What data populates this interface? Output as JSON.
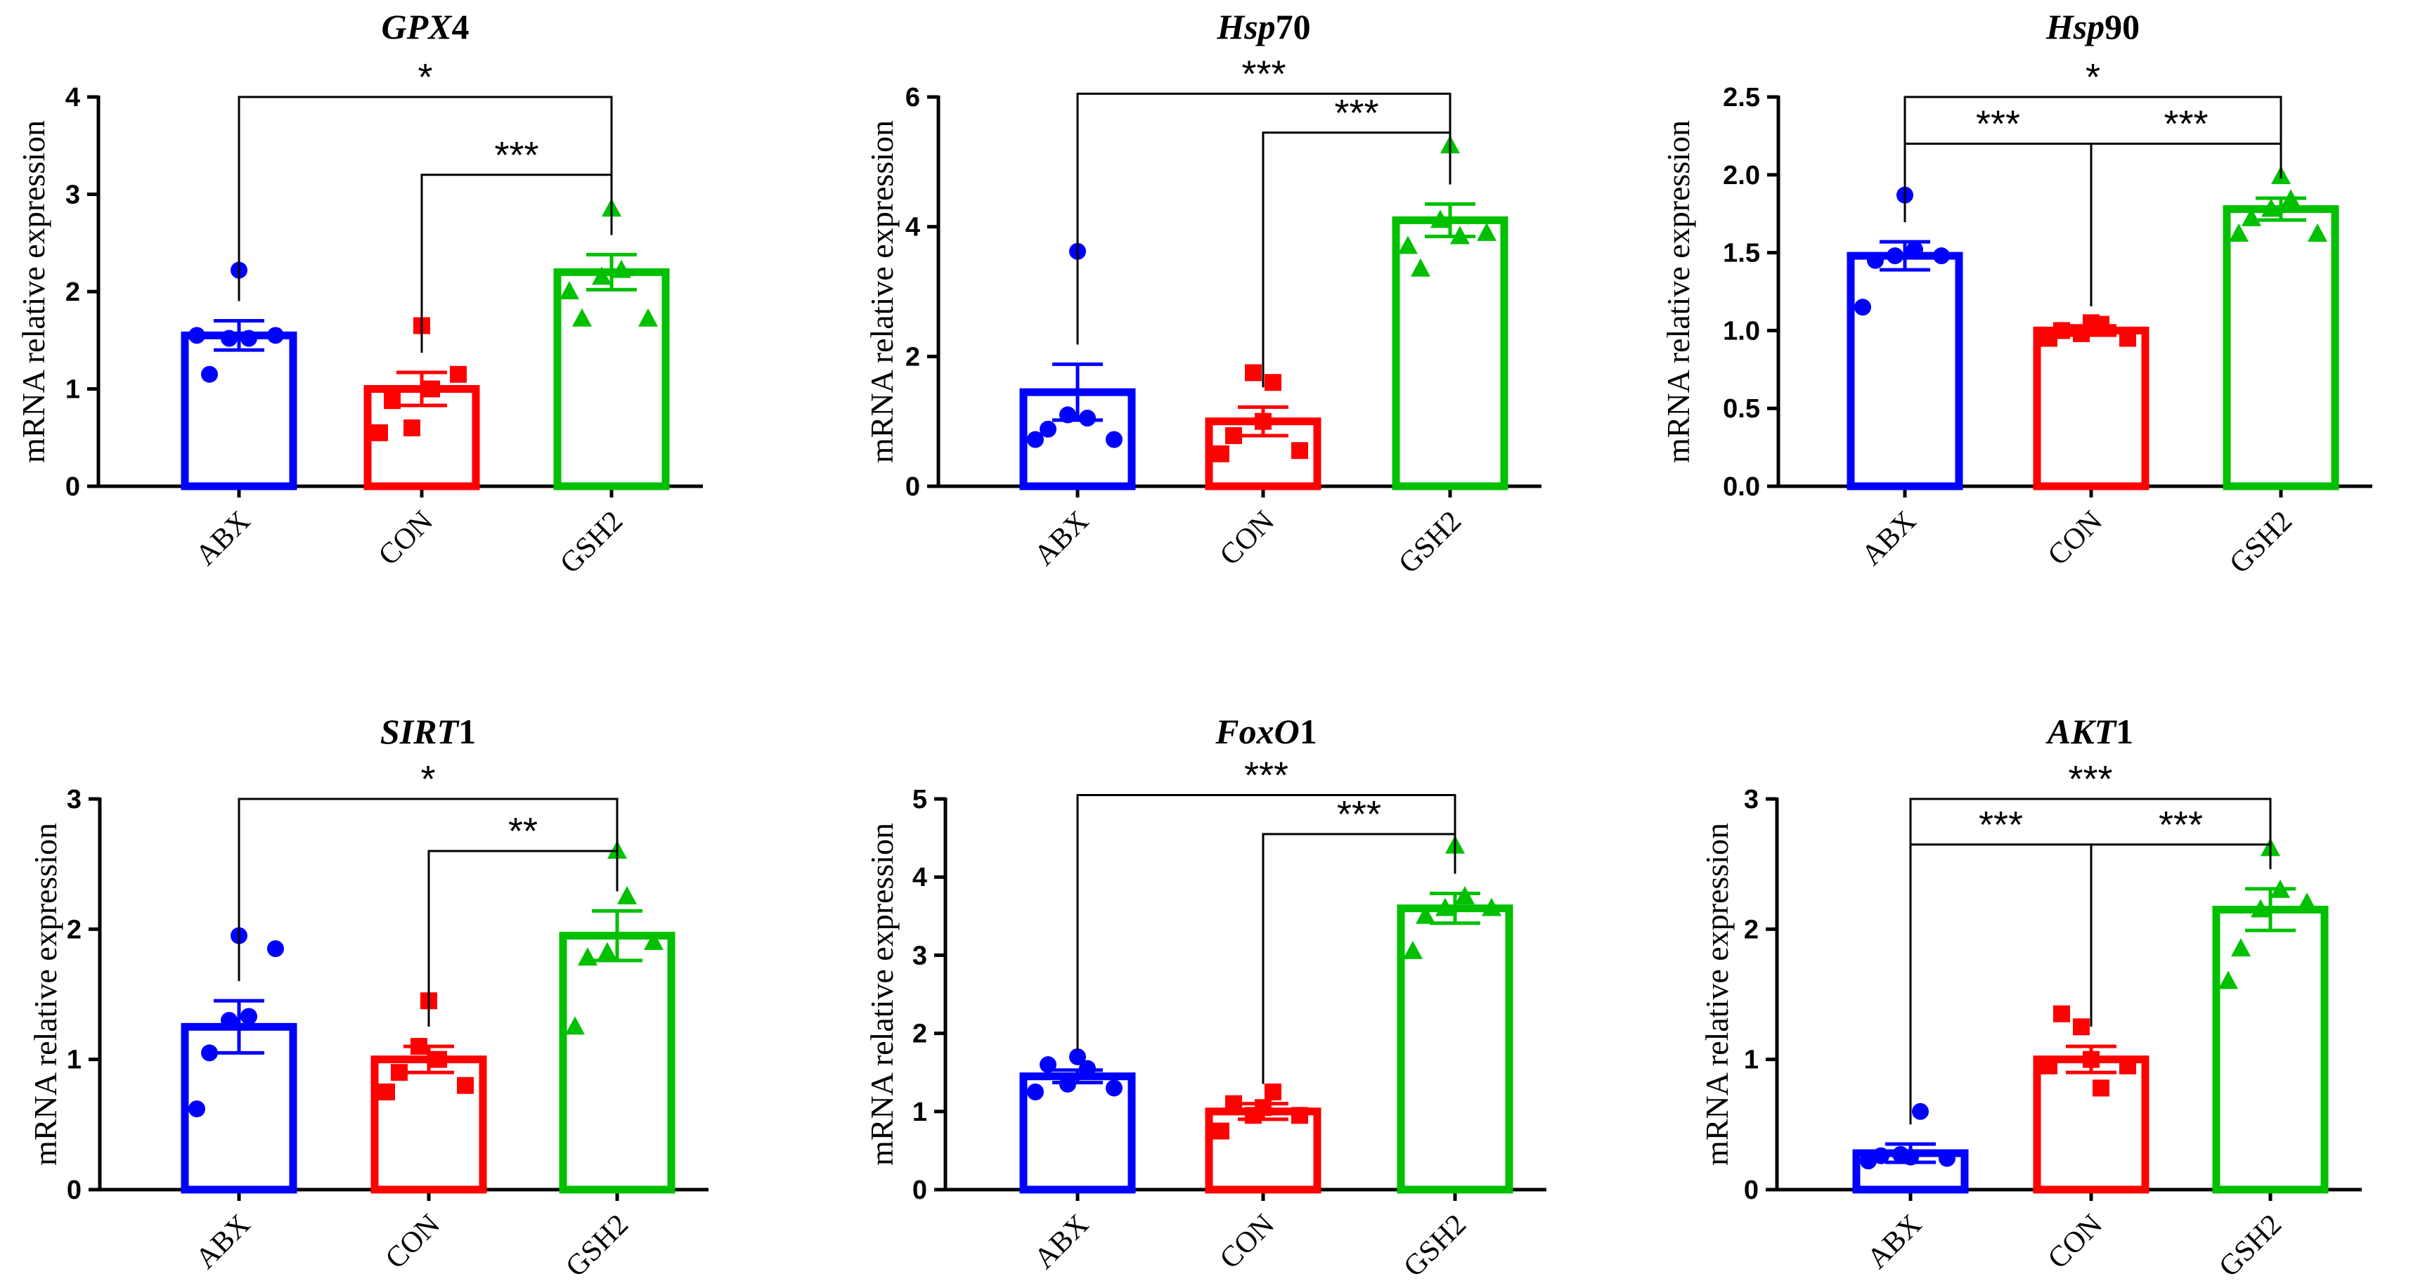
{
  "colors": {
    "ABX": "#0000ff",
    "CON": "#ff0000",
    "GSH2": "#00c000"
  },
  "chart_data": [
    {
      "type": "bar",
      "title_italic": "GPX",
      "title_plain": "4",
      "ylabel": "mRNA relative expression",
      "categories": [
        "ABX",
        "CON",
        "GSH2"
      ],
      "values": [
        1.55,
        1.0,
        2.2
      ],
      "sem": [
        0.15,
        0.17,
        0.18
      ],
      "points": [
        [
          1.55,
          1.15,
          1.52,
          1.52,
          2.22,
          1.55
        ],
        [
          0.55,
          0.88,
          0.6,
          1.0,
          1.65,
          1.15
        ],
        [
          2.0,
          1.72,
          2.15,
          2.22,
          2.85,
          1.72
        ]
      ],
      "marker": [
        "circle",
        "square",
        "triangle"
      ],
      "ylim": [
        0,
        4
      ],
      "yticks": [
        "0",
        "1",
        "2",
        "3",
        "4"
      ],
      "annotations": [
        {
          "from": 0,
          "to": 2,
          "label": "*",
          "level": 4
        },
        {
          "from": 1,
          "to": 2,
          "label": "***",
          "level": 3.2
        }
      ]
    },
    {
      "type": "bar",
      "title_italic": "Hsp",
      "title_plain": "70",
      "ylabel": "mRNA relative expression",
      "categories": [
        "ABX",
        "CON",
        "GSH2"
      ],
      "values": [
        1.45,
        1.0,
        4.1
      ],
      "sem": [
        0.43,
        0.22,
        0.25
      ],
      "points": [
        [
          0.72,
          0.88,
          1.1,
          1.05,
          3.62,
          0.72
        ],
        [
          0.5,
          0.78,
          1.75,
          1.6,
          1.0,
          0.55
        ],
        [
          3.7,
          3.35,
          4.1,
          3.85,
          5.25,
          3.9
        ]
      ],
      "marker": [
        "circle",
        "square",
        "triangle"
      ],
      "ylim": [
        0,
        6
      ],
      "yticks": [
        "0",
        "2",
        "4",
        "6"
      ],
      "annotations": [
        {
          "from": 0,
          "to": 2,
          "label": "***",
          "level": 6.05
        },
        {
          "from": 1,
          "to": 2,
          "label": "***",
          "level": 5.45
        }
      ]
    },
    {
      "type": "bar",
      "title_italic": "Hsp",
      "title_plain": "90",
      "ylabel": "mRNA relative expression",
      "categories": [
        "ABX",
        "CON",
        "GSH2"
      ],
      "values": [
        1.48,
        1.0,
        1.78
      ],
      "sem": [
        0.09,
        0.03,
        0.07
      ],
      "points": [
        [
          1.15,
          1.45,
          1.48,
          1.52,
          1.87,
          1.48
        ],
        [
          0.95,
          1.0,
          0.98,
          1.04,
          1.05,
          0.95
        ],
        [
          1.62,
          1.72,
          1.78,
          1.84,
          1.99,
          1.62
        ]
      ],
      "marker": [
        "circle",
        "square",
        "triangle"
      ],
      "ylim": [
        0,
        2.5
      ],
      "yticks": [
        "0.0",
        "0.5",
        "1.0",
        "1.5",
        "2.0",
        "2.5"
      ],
      "annotations": [
        {
          "from": 0,
          "to": 2,
          "label": "*",
          "level": 2.5
        },
        {
          "from": 0,
          "to": 1,
          "label": "***",
          "level": 2.2
        },
        {
          "from": 1,
          "to": 2,
          "label": "***",
          "level": 2.2
        }
      ]
    },
    {
      "type": "bar",
      "title_italic": "SIRT",
      "title_plain": "1",
      "ylabel": "mRNA relative expression",
      "categories": [
        "ABX",
        "CON",
        "GSH2"
      ],
      "values": [
        1.25,
        1.0,
        1.95
      ],
      "sem": [
        0.2,
        0.1,
        0.19
      ],
      "points": [
        [
          0.62,
          1.05,
          1.3,
          1.33,
          1.95,
          1.85
        ],
        [
          0.75,
          0.9,
          1.1,
          1.0,
          1.45,
          0.8
        ],
        [
          1.25,
          1.78,
          1.82,
          2.25,
          2.6,
          1.9
        ]
      ],
      "marker": [
        "circle",
        "square",
        "triangle"
      ],
      "ylim": [
        0,
        3
      ],
      "yticks": [
        "0",
        "1",
        "2",
        "3"
      ],
      "annotations": [
        {
          "from": 0,
          "to": 2,
          "label": "*",
          "level": 3.0
        },
        {
          "from": 1,
          "to": 2,
          "label": "**",
          "level": 2.6
        }
      ]
    },
    {
      "type": "bar",
      "title_italic": "FoxO",
      "title_plain": "1",
      "ylabel": "mRNA relative expression",
      "categories": [
        "ABX",
        "CON",
        "GSH2"
      ],
      "values": [
        1.45,
        1.0,
        3.6
      ],
      "sem": [
        0.08,
        0.1,
        0.19
      ],
      "points": [
        [
          1.25,
          1.6,
          1.35,
          1.55,
          1.7,
          1.3
        ],
        [
          0.75,
          1.1,
          0.95,
          1.25,
          1.05,
          0.95
        ],
        [
          3.05,
          3.5,
          3.6,
          3.75,
          4.4,
          3.6
        ]
      ],
      "marker": [
        "circle",
        "square",
        "triangle"
      ],
      "ylim": [
        0,
        5
      ],
      "yticks": [
        "0",
        "1",
        "2",
        "3",
        "4",
        "5"
      ],
      "annotations": [
        {
          "from": 0,
          "to": 2,
          "label": "***",
          "level": 5.05
        },
        {
          "from": 1,
          "to": 2,
          "label": "***",
          "level": 4.55
        }
      ]
    },
    {
      "type": "bar",
      "title_italic": "AKT",
      "title_plain": "1",
      "ylabel": "mRNA relative expression",
      "categories": [
        "ABX",
        "CON",
        "GSH2"
      ],
      "values": [
        0.28,
        1.0,
        2.15
      ],
      "sem": [
        0.07,
        0.1,
        0.16
      ],
      "points": [
        [
          0.22,
          0.26,
          0.27,
          0.6,
          0.25,
          0.24
        ],
        [
          0.95,
          1.35,
          1.25,
          0.78,
          1.0,
          0.95
        ],
        [
          1.6,
          1.85,
          2.15,
          2.3,
          2.62,
          2.2
        ]
      ],
      "marker": [
        "circle",
        "square",
        "triangle"
      ],
      "ylim": [
        0,
        3
      ],
      "yticks": [
        "0",
        "1",
        "2",
        "3"
      ],
      "annotations": [
        {
          "from": 0,
          "to": 2,
          "label": "***",
          "level": 3.0
        },
        {
          "from": 0,
          "to": 1,
          "label": "***",
          "level": 2.65
        },
        {
          "from": 1,
          "to": 2,
          "label": "***",
          "level": 2.65
        }
      ]
    }
  ]
}
